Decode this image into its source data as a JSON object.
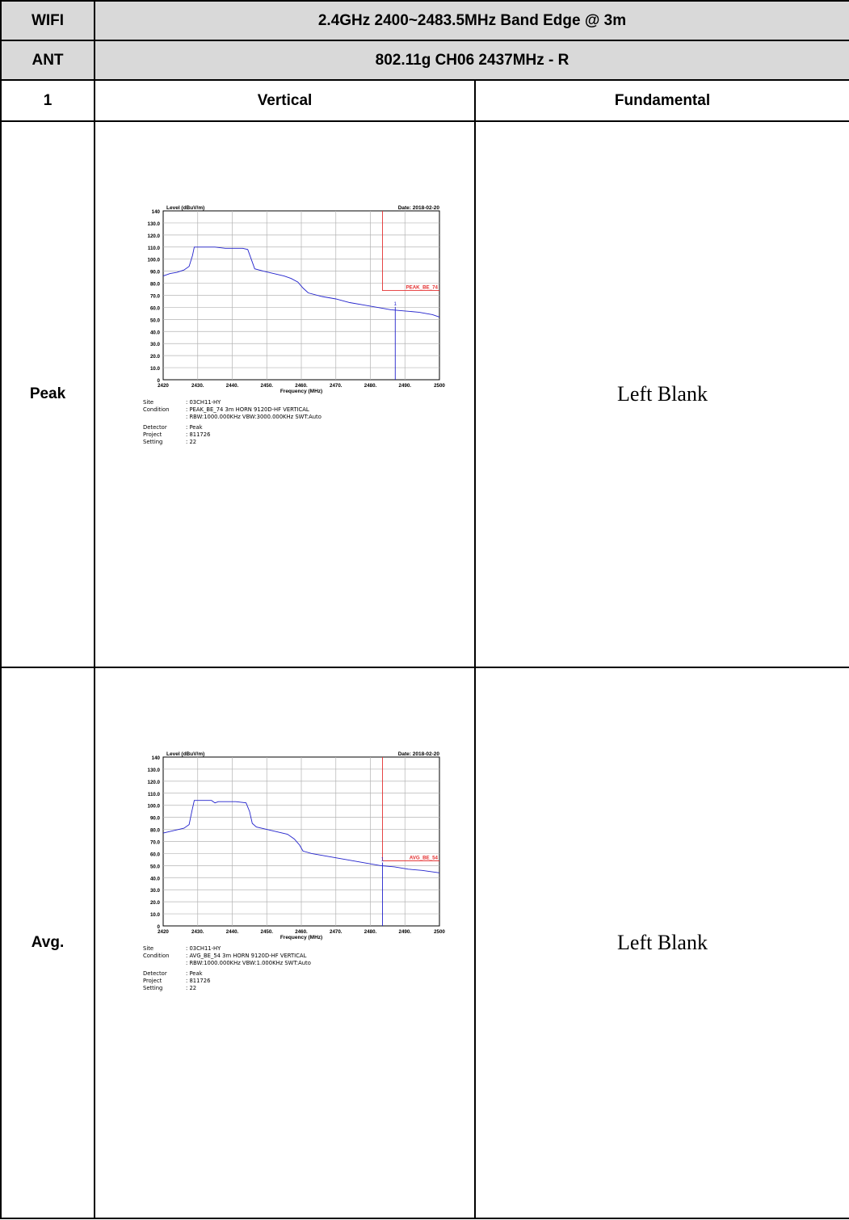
{
  "header": {
    "row1_label": "WIFI",
    "row1_title": "2.4GHz 2400~2483.5MHz Band Edge @ 3m",
    "row2_label": "ANT",
    "row2_title": "802.11g CH06 2437MHz - R",
    "col_index": "1",
    "col_vertical": "Vertical",
    "col_fundamental": "Fundamental"
  },
  "rows": [
    {
      "label": "Peak",
      "right_text": "Left Blank"
    },
    {
      "label": "Avg.",
      "right_text": "Left Blank"
    }
  ],
  "chart_data": [
    {
      "type": "line",
      "ylabel": "Level (dBuV/m)",
      "xlabel": "Frequency (MHz)",
      "date": "Date: 2018-02-20",
      "xlim": [
        2420,
        2500
      ],
      "ylim": [
        0,
        140
      ],
      "x_ticks": [
        "2420",
        "2430.",
        "2440.",
        "2450.",
        "2460.",
        "2470.",
        "2480.",
        "2490.",
        "2500"
      ],
      "y_ticks": [
        "140",
        "130.0",
        "120.0",
        "110.0",
        "100.0",
        "90.0",
        "80.0",
        "70.0",
        "60.0",
        "50.0",
        "40.0",
        "30.0",
        "20.0",
        "10.0",
        "0"
      ],
      "limit_label": "PEAK_BE_74",
      "limit_level": 74,
      "limit_start": 2483.5,
      "marker_label": "1",
      "marker_x": 2487.2,
      "series": [
        {
          "x": [
            2420,
            2422,
            2424,
            2426,
            2427.5,
            2428.5,
            2429,
            2432,
            2435,
            2438,
            2440,
            2443,
            2444.5,
            2445.5,
            2446.5,
            2449,
            2452,
            2455,
            2457,
            2459,
            2460.5,
            2462,
            2466,
            2470,
            2474,
            2478,
            2482,
            2486,
            2490,
            2494,
            2498,
            2500
          ],
          "y": [
            86,
            88,
            89,
            91,
            94,
            103,
            110,
            110,
            110,
            109,
            109,
            109,
            108,
            100,
            92,
            90,
            88,
            86,
            84,
            81,
            76,
            72,
            69,
            67,
            64,
            62,
            60,
            58,
            57,
            56,
            54,
            52
          ]
        }
      ],
      "info": [
        {
          "k": "Site",
          "v": ": 03CH11-HY"
        },
        {
          "k": "Condition",
          "v": ": PEAK_BE_74 3m HORN 9120D-HF VERTICAL"
        },
        {
          "k": "",
          "v": ": RBW:1000.000KHz VBW:3000.000KHz SWT:Auto"
        },
        {
          "k": "Detector",
          "v": ": Peak"
        },
        {
          "k": "Project",
          "v": ": 811726"
        },
        {
          "k": "Setting",
          "v": ": 22"
        }
      ]
    },
    {
      "type": "line",
      "ylabel": "Level (dBuV/m)",
      "xlabel": "Frequency (MHz)",
      "date": "Date: 2018-02-20",
      "xlim": [
        2420,
        2500
      ],
      "ylim": [
        0,
        140
      ],
      "x_ticks": [
        "2420",
        "2430.",
        "2440.",
        "2450.",
        "2460.",
        "2470.",
        "2480.",
        "2490.",
        "2500"
      ],
      "y_ticks": [
        "140",
        "130.0",
        "120.0",
        "110.0",
        "100.0",
        "90.0",
        "80.0",
        "70.0",
        "60.0",
        "50.0",
        "40.0",
        "30.0",
        "20.0",
        "10.0",
        "0"
      ],
      "limit_label": "AVG_BE_54",
      "limit_level": 54,
      "limit_start": 2483.5,
      "marker_label": "1",
      "marker_x": 2483.5,
      "series": [
        {
          "x": [
            2420,
            2423,
            2426,
            2427.5,
            2428.3,
            2429,
            2432,
            2434,
            2435,
            2436,
            2438,
            2441,
            2444,
            2445,
            2445.8,
            2447,
            2450,
            2453,
            2456,
            2458,
            2459.5,
            2460.5,
            2463,
            2467,
            2471,
            2475,
            2479,
            2483,
            2487,
            2491,
            2495,
            2500
          ],
          "y": [
            77,
            79,
            81,
            84,
            95,
            104,
            104,
            104,
            102,
            103,
            103,
            103,
            102,
            95,
            85,
            82,
            80,
            78,
            76,
            72,
            67,
            62,
            60,
            58,
            56,
            54,
            52,
            50,
            49,
            47,
            46,
            44
          ]
        }
      ],
      "info": [
        {
          "k": "Site",
          "v": ": 03CH11-HY"
        },
        {
          "k": "Condition",
          "v": ": AVG_BE_54 3m HORN 9120D-HF VERTICAL"
        },
        {
          "k": "",
          "v": ": RBW:1000.000KHz VBW:1.000KHz SWT:Auto"
        },
        {
          "k": "Detector",
          "v": ": Peak"
        },
        {
          "k": "Project",
          "v": ": 811726"
        },
        {
          "k": "Setting",
          "v": ": 22"
        }
      ]
    }
  ]
}
